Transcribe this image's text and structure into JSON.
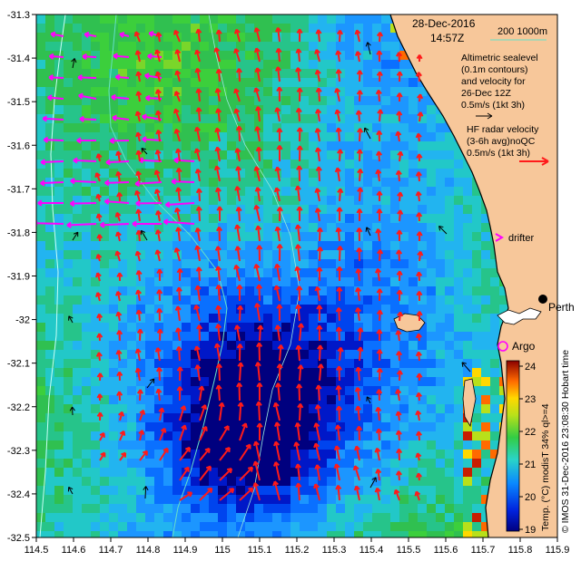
{
  "header": {
    "date": "28-Dec-2016",
    "time": "14:57Z",
    "depth_label": "200  1000m"
  },
  "altimetry": {
    "lines": [
      "Altimetric sealevel",
      "(0.1m contours)",
      "and velocity for",
      "26-Dec 12Z",
      "0.5m/s (1kt 3h)"
    ]
  },
  "hf_radar": {
    "lines": [
      "HF radar velocity",
      "(3-6h avg)noQC",
      "0.5m/s (1kt 3h)"
    ]
  },
  "legend": {
    "drifter": "drifter",
    "argo": "Argo",
    "city": "Perth"
  },
  "colorbar": {
    "ticks": [
      "24",
      "23",
      "22",
      "21",
      "20",
      "19"
    ],
    "label": "Temp. (°C) modisT 34% ql>=4"
  },
  "credit": "© IMOS 31-Dec-2016 23:08:30 Hobart time",
  "axes": {
    "x_ticks": [
      "114.5",
      "114.6",
      "114.7",
      "114.8",
      "114.9",
      "115",
      "115.1",
      "115.2",
      "115.3",
      "115.4",
      "115.5",
      "115.6",
      "115.7",
      "115.8",
      "115.9"
    ],
    "y_ticks": [
      "-31.3",
      "-31.4",
      "-31.5",
      "-31.6",
      "-31.7",
      "-31.8",
      "-31.9",
      "-32",
      "-32.1",
      "-32.2",
      "-32.3",
      "-32.4",
      "-32.5"
    ]
  },
  "colors": {
    "land": "#f7c79a",
    "hf_vector": "#ff1a1a",
    "altimetry_vector": "#ff00ff",
    "drifter_vector": "#000000",
    "argo_marker": "#ff00ff",
    "depth_contour": "#66e0c8"
  }
}
